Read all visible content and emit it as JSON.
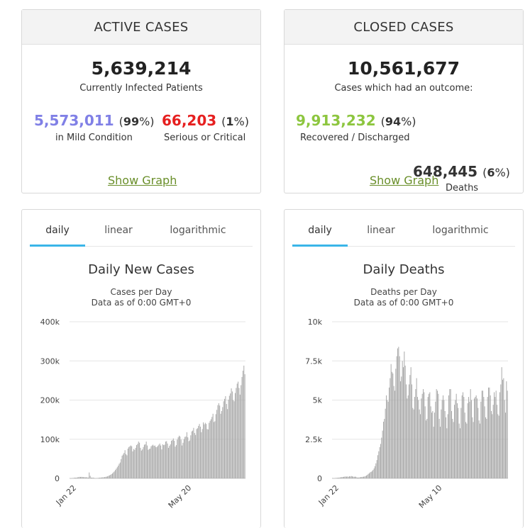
{
  "active": {
    "title": "ACTIVE CASES",
    "total": "5,639,214",
    "total_label": "Currently Infected Patients",
    "mild_value": "5,573,011",
    "mild_pct": "99",
    "mild_label": "in Mild Condition",
    "serious_value": "66,203",
    "serious_pct": "1",
    "serious_label": "Serious or Critical",
    "show_graph": "Show Graph",
    "colors": {
      "mild": "#8080e6",
      "serious": "#e62020"
    }
  },
  "closed": {
    "title": "CLOSED CASES",
    "total": "10,561,677",
    "total_label": "Cases which had an outcome:",
    "recovered_value": "9,913,232",
    "recovered_pct": "94",
    "recovered_label": "Recovered / Discharged",
    "deaths_value": "648,445",
    "deaths_pct": "6",
    "deaths_label": "Deaths",
    "show_graph": "Show Graph",
    "colors": {
      "recovered": "#8dc63f"
    }
  },
  "tabs": [
    "daily",
    "linear",
    "logarithmic"
  ],
  "chart_data": [
    {
      "type": "bar",
      "title": "Daily New Cases",
      "subtitle": "Cases per Day",
      "subtitle2": "Data as of 0:00 GMT+0",
      "ylim": [
        0,
        400000
      ],
      "yticks": [
        0,
        100000,
        200000,
        300000,
        400000
      ],
      "ytick_labels": [
        "0",
        "100k",
        "200k",
        "300k",
        "400k"
      ],
      "xtick_labels": [
        {
          "label": "Jan 22",
          "index": 0
        },
        {
          "label": "May 20",
          "index": 119
        }
      ],
      "color": "#aaaaaa",
      "grid": true,
      "values": [
        600,
        300,
        600,
        900,
        1300,
        2000,
        1700,
        2100,
        2700,
        3200,
        3900,
        3700,
        3900,
        3700,
        3200,
        3400,
        2700,
        3100,
        2600,
        2000,
        15100,
        6500,
        2000,
        1900,
        2000,
        1400,
        400,
        600,
        900,
        1100,
        1600,
        1900,
        2100,
        2400,
        2700,
        2900,
        3300,
        3900,
        4500,
        5300,
        6600,
        7800,
        9000,
        10900,
        12800,
        15500,
        17900,
        21400,
        24900,
        28500,
        32500,
        37300,
        40600,
        49300,
        58000,
        61000,
        65000,
        72000,
        62000,
        59000,
        76000,
        80000,
        82000,
        84000,
        82000,
        69000,
        75000,
        73000,
        78000,
        85000,
        88000,
        94000,
        91000,
        78000,
        71000,
        74000,
        80000,
        86000,
        87000,
        94000,
        84000,
        73000,
        75000,
        76000,
        82000,
        84000,
        86000,
        83000,
        84000,
        80000,
        80000,
        83000,
        86000,
        89000,
        84000,
        74000,
        87000,
        85000,
        86000,
        94000,
        95000,
        89000,
        78000,
        83000,
        87000,
        96000,
        98000,
        102000,
        96000,
        81000,
        85000,
        99000,
        105000,
        109000,
        107000,
        99000,
        84000,
        91000,
        100000,
        106000,
        107000,
        118000,
        105000,
        95000,
        97000,
        110000,
        120000,
        122000,
        129000,
        116000,
        111000,
        126000,
        128000,
        134000,
        139000,
        132000,
        118000,
        126000,
        143000,
        138000,
        142000,
        139000,
        126000,
        125000,
        142000,
        147000,
        151000,
        157000,
        165000,
        144000,
        146000,
        164000,
        175000,
        187000,
        192000,
        186000,
        165000,
        172000,
        182000,
        197000,
        203000,
        210000,
        190000,
        177000,
        201000,
        211000,
        217000,
        230000,
        222000,
        200000,
        197000,
        218000,
        231000,
        242000,
        247000,
        231000,
        214000,
        238000,
        259000,
        275000,
        288000,
        266000
      ],
      "last_values_note": ""
    },
    {
      "type": "bar",
      "title": "Daily Deaths",
      "subtitle": "Deaths per Day",
      "subtitle2": "Data as of 0:00 GMT+0",
      "ylim": [
        0,
        10000
      ],
      "yticks": [
        0,
        2500,
        5000,
        7500,
        10000
      ],
      "ytick_labels": [
        "0",
        "2.5k",
        "5k",
        "7.5k",
        "10k"
      ],
      "xtick_labels": [
        {
          "label": "Jan 22",
          "index": 0
        },
        {
          "label": "May 10",
          "index": 109
        }
      ],
      "color": "#aaaaaa",
      "grid": true,
      "values": [
        20,
        10,
        20,
        20,
        30,
        40,
        40,
        50,
        60,
        70,
        80,
        90,
        100,
        110,
        120,
        110,
        120,
        100,
        140,
        120,
        150,
        130,
        110,
        100,
        110,
        100,
        60,
        50,
        60,
        70,
        80,
        90,
        100,
        110,
        120,
        150,
        180,
        230,
        290,
        330,
        390,
        420,
        470,
        540,
        640,
        780,
        960,
        1170,
        1480,
        1730,
        2000,
        2200,
        2600,
        3050,
        3620,
        3800,
        4450,
        5300,
        5000,
        4900,
        5800,
        6400,
        7300,
        6800,
        6700,
        5900,
        5600,
        7000,
        7800,
        8300,
        8400,
        7800,
        6200,
        6500,
        7500,
        7100,
        8100,
        7200,
        6000,
        5100,
        5300,
        6000,
        6600,
        7100,
        6000,
        4500,
        4400,
        5200,
        5700,
        6400,
        5200,
        5000,
        4400,
        4100,
        5100,
        5400,
        5700,
        5500,
        4600,
        3700,
        3800,
        5200,
        5400,
        5500,
        4600,
        4200,
        4300,
        3300,
        4200,
        4900,
        5700,
        5600,
        5400,
        3800,
        3300,
        4400,
        5000,
        5300,
        5000,
        4300,
        3900,
        3200,
        4100,
        5300,
        5700,
        5700,
        4300,
        3800,
        3600,
        4700,
        5000,
        5400,
        4800,
        4500,
        3500,
        3200,
        4500,
        5300,
        5500,
        5200,
        4200,
        3600,
        3500,
        4800,
        5200,
        4900,
        5700,
        5000,
        3900,
        3600,
        5100,
        5200,
        5300,
        5100,
        4500,
        3700,
        3500,
        4900,
        5600,
        5600,
        5200,
        4600,
        3900,
        3800,
        5200,
        5800,
        5800,
        5300,
        4300,
        4100,
        4700,
        5500,
        5200,
        5600,
        4700,
        4100,
        4000,
        5500,
        6000,
        7100,
        6300,
        6400,
        5000,
        4200,
        6200,
        5600
      ]
    }
  ]
}
